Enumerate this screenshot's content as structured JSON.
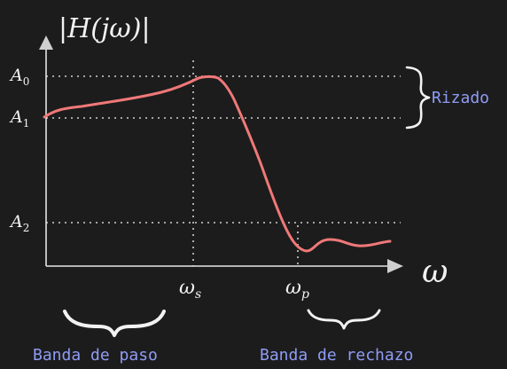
{
  "diagram": {
    "y_axis_label": "|H(jω)|",
    "x_axis_label": "ω",
    "levels": {
      "a0": {
        "base": "A",
        "sub": "0"
      },
      "a1": {
        "base": "A",
        "sub": "1"
      },
      "a2": {
        "base": "A",
        "sub": "2"
      }
    },
    "frequencies": {
      "ws": {
        "base": "ω",
        "sub": "s"
      },
      "wp": {
        "base": "ω",
        "sub": "p"
      }
    },
    "ripple_label": "Rizado",
    "passband_label": "Banda de paso",
    "stopband_label": "Banda de rechazo",
    "colors": {
      "background": "#1c1c1c",
      "axis": "#e6e6e6",
      "curve": "#f07878",
      "annotation": "#8f9cf5",
      "guide": "#d0d0d0"
    }
  }
}
